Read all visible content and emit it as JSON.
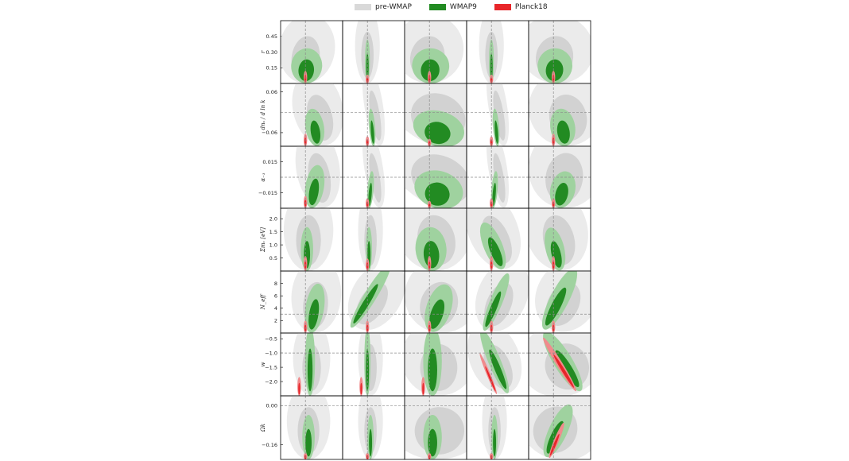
{
  "chart_data": {
    "type": "contour",
    "legend": {
      "position": "top-center",
      "entries": [
        {
          "label": "pre-WMAP",
          "color": "#d9d9d9"
        },
        {
          "label": "WMAP9",
          "color": "#228b22"
        },
        {
          "label": "Planck18",
          "color": "#e8262a"
        }
      ]
    },
    "colors": {
      "pre_wmap_outer": "#ebebeb",
      "pre_wmap_inner": "#d2d2d2",
      "wmap9_outer": "#9fd29f",
      "wmap9_inner": "#228b22",
      "planck18_outer": "#f08b8d",
      "planck18_inner": "#e8262a",
      "fiducial_line": "#8a8a8a",
      "frame": "#000000"
    },
    "grid": false,
    "columns": 5,
    "rows": [
      {
        "label": "r",
        "ylim": [
          0,
          0.6
        ],
        "ticks": [
          0.15,
          0.3,
          0.45
        ],
        "tick_labels": [
          "0.15",
          "0.30",
          "0.45"
        ],
        "fiducial": null
      },
      {
        "label": "dnₛ / d ln k",
        "ylim": [
          -0.1,
          0.085
        ],
        "ticks": [
          -0.06,
          0.06
        ],
        "tick_labels": [
          "−0.06",
          "0.06"
        ],
        "fiducial": 0
      },
      {
        "label": "α₋₁",
        "ylim": [
          -0.03,
          0.03
        ],
        "ticks": [
          -0.015,
          0.015
        ],
        "tick_labels": [
          "−0.015",
          "0.015"
        ],
        "fiducial": 0
      },
      {
        "label": "Σmᵥ [eV]",
        "ylim": [
          0,
          2.4
        ],
        "ticks": [
          0.5,
          1.0,
          1.5,
          2.0
        ],
        "tick_labels": [
          "0.5",
          "1.0",
          "1.5",
          "2.0"
        ],
        "fiducial": null
      },
      {
        "label": "N_eff",
        "ylim": [
          0,
          10
        ],
        "ticks": [
          2,
          4,
          6,
          8
        ],
        "tick_labels": [
          "2",
          "4",
          "6",
          "8"
        ],
        "fiducial": 3.046
      },
      {
        "label": "w",
        "ylim": [
          -2.5,
          -0.3
        ],
        "ticks": [
          -2.0,
          -1.5,
          -1.0,
          -0.5
        ],
        "tick_labels": [
          "−2.0",
          "−1.5",
          "−1.0",
          "−0.5"
        ],
        "fiducial": -1
      },
      {
        "label": "Ωk",
        "ylim": [
          -0.22,
          0.04
        ],
        "ticks": [
          -0.16,
          0.0
        ],
        "tick_labels": [
          "−0.16",
          "0.00"
        ],
        "fiducial": 0
      }
    ],
    "contours": [
      [
        {
          "pre": [
            0.05,
            0.55,
            0.45,
            0.2
          ],
          "w9": [
            0.04,
            0.28,
            0.25,
            0.12
          ],
          "pl": [
            0.0,
            0.1,
            0.02,
            0.0
          ]
        },
        {
          "pre": [
            0.0,
            0.6,
            0.2,
            0.0
          ],
          "w9": [
            0.0,
            0.35,
            0.04,
            0.0
          ],
          "pl": [
            0.0,
            0.07,
            0.0,
            0.0
          ]
        },
        {
          "pre": [
            0.0,
            0.55,
            0.55,
            0.3
          ],
          "w9": [
            0.04,
            0.28,
            0.3,
            0.15
          ],
          "pl": [
            0.0,
            0.1,
            0.02,
            0.0
          ]
        },
        {
          "pre": [
            0.0,
            0.6,
            0.2,
            0.0
          ],
          "w9": [
            0.0,
            0.35,
            0.04,
            0.0
          ],
          "pl": [
            0.0,
            0.07,
            0.0,
            0.0
          ]
        },
        {
          "pre": [
            0.1,
            0.55,
            0.6,
            0.3
          ],
          "w9": [
            0.05,
            0.28,
            0.28,
            0.14
          ],
          "pl": [
            0.0,
            0.1,
            0.02,
            0.0
          ]
        }
      ],
      [
        {
          "pre": [
            0.4,
            0.6,
            0.4,
            -0.3
          ],
          "w9": [
            0.3,
            0.3,
            0.15,
            -0.2
          ],
          "pl": [
            0.0,
            0.1,
            0.0,
            0.0
          ]
        },
        {
          "pre": [
            0.2,
            0.65,
            0.15,
            -0.2
          ],
          "w9": [
            0.15,
            0.3,
            0.05,
            -0.1
          ],
          "pl": [
            0.0,
            0.08,
            0.0,
            0.0
          ]
        },
        {
          "pre": [
            0.4,
            0.6,
            0.9,
            0.5
          ],
          "w9": [
            0.3,
            0.28,
            0.42,
            0.35
          ],
          "pl": [
            0.0,
            0.06,
            0.02,
            0.0
          ]
        },
        {
          "pre": [
            0.2,
            0.65,
            0.15,
            -0.2
          ],
          "w9": [
            0.15,
            0.3,
            0.05,
            -0.1
          ],
          "pl": [
            0.0,
            0.08,
            0.0,
            0.0
          ]
        },
        {
          "pre": [
            0.4,
            0.6,
            0.6,
            -0.3
          ],
          "w9": [
            0.3,
            0.3,
            0.2,
            -0.2
          ],
          "pl": [
            0.0,
            0.1,
            0.0,
            0.0
          ]
        }
      ],
      [
        {
          "pre": [
            0.4,
            0.65,
            0.35,
            -0.2
          ],
          "w9": [
            0.3,
            0.35,
            0.15,
            0.2
          ],
          "pl": [
            0.0,
            0.1,
            0.0,
            0.0
          ]
        },
        {
          "pre": [
            0.2,
            0.65,
            0.15,
            -0.2
          ],
          "w9": [
            0.1,
            0.3,
            0.05,
            0.1
          ],
          "pl": [
            0.0,
            0.08,
            0.0,
            0.0
          ]
        },
        {
          "pre": [
            0.5,
            0.6,
            1.0,
            0.6
          ],
          "w9": [
            0.3,
            0.3,
            0.4,
            0.4
          ],
          "pl": [
            0.0,
            0.06,
            0.02,
            0.0
          ]
        },
        {
          "pre": [
            0.2,
            0.65,
            0.15,
            -0.2
          ],
          "w9": [
            0.1,
            0.3,
            0.05,
            0.1
          ],
          "pl": [
            0.0,
            0.08,
            0.0,
            0.0
          ]
        },
        {
          "pre": [
            0.4,
            0.65,
            0.6,
            0.2
          ],
          "w9": [
            0.3,
            0.3,
            0.2,
            0.3
          ],
          "pl": [
            0.0,
            0.08,
            0.0,
            0.0
          ]
        }
      ],
      [
        {
          "pre": [
            0.1,
            0.65,
            0.4,
            0.0
          ],
          "w9": [
            0.05,
            0.35,
            0.1,
            0.0
          ],
          "pl": [
            0.0,
            0.12,
            0.0,
            0.0
          ]
        },
        {
          "pre": [
            0.1,
            0.65,
            0.2,
            0.0
          ],
          "w9": [
            0.05,
            0.35,
            0.05,
            0.0
          ],
          "pl": [
            0.0,
            0.1,
            0.0,
            0.0
          ]
        },
        {
          "pre": [
            0.15,
            0.65,
            0.6,
            -0.3
          ],
          "w9": [
            0.05,
            0.35,
            0.25,
            -0.1
          ],
          "pl": [
            0.0,
            0.12,
            0.0,
            0.0
          ]
        },
        {
          "pre": [
            0.05,
            0.65,
            0.4,
            -0.5
          ],
          "w9": [
            0.05,
            0.4,
            0.15,
            -0.5
          ],
          "pl": [
            0.0,
            0.12,
            0.0,
            0.0
          ]
        },
        {
          "pre": [
            0.1,
            0.65,
            0.5,
            -0.3
          ],
          "w9": [
            0.05,
            0.35,
            0.15,
            -0.3
          ],
          "pl": [
            0.0,
            0.12,
            0.0,
            0.0
          ]
        }
      ],
      [
        {
          "pre": [
            0.35,
            0.6,
            0.4,
            0.1
          ],
          "w9": [
            0.3,
            0.4,
            0.15,
            0.2
          ],
          "pl": [
            0.0,
            0.1,
            0.02,
            0.0
          ]
        },
        {
          "pre": [
            0.3,
            0.6,
            0.4,
            0.7
          ],
          "w9": [
            0.1,
            0.6,
            0.1,
            0.7
          ],
          "pl": [
            0.0,
            0.1,
            0.0,
            0.0
          ]
        },
        {
          "pre": [
            0.4,
            0.6,
            0.6,
            0.4
          ],
          "w9": [
            0.3,
            0.4,
            0.2,
            0.4
          ],
          "pl": [
            0.0,
            0.1,
            0.02,
            0.0
          ]
        },
        {
          "pre": [
            0.35,
            0.6,
            0.4,
            0.5
          ],
          "w9": [
            0.15,
            0.5,
            0.1,
            0.5
          ],
          "pl": [
            0.0,
            0.1,
            0.0,
            0.0
          ]
        },
        {
          "pre": [
            0.45,
            0.6,
            0.5,
            0.6
          ],
          "w9": [
            0.2,
            0.55,
            0.15,
            0.6
          ],
          "pl": [
            0.0,
            0.1,
            0.02,
            0.0
          ]
        }
      ],
      [
        {
          "pre": [
            0.2,
            0.6,
            0.3,
            0.0
          ],
          "w9": [
            0.15,
            0.55,
            0.08,
            0.0
          ],
          "pl": [
            -0.2,
            0.15,
            0.03,
            0.0
          ]
        },
        {
          "pre": [
            0.1,
            0.6,
            0.2,
            0.0
          ],
          "w9": [
            0.0,
            0.55,
            0.05,
            0.0
          ],
          "pl": [
            -0.2,
            0.15,
            0.02,
            0.0
          ]
        },
        {
          "pre": [
            0.3,
            0.6,
            0.6,
            0.0
          ],
          "w9": [
            0.1,
            0.55,
            0.15,
            0.0
          ],
          "pl": [
            -0.2,
            0.15,
            0.03,
            0.0
          ]
        },
        {
          "pre": [
            0.1,
            0.6,
            0.4,
            -0.5
          ],
          "w9": [
            0.1,
            0.55,
            0.1,
            -0.5
          ],
          "pl": [
            -0.1,
            0.35,
            0.03,
            -0.5
          ]
        },
        {
          "pre": [
            0.3,
            0.6,
            0.7,
            -0.6
          ],
          "w9": [
            0.3,
            0.55,
            0.15,
            -0.7
          ],
          "pl": [
            0.2,
            0.5,
            0.05,
            -0.7
          ]
        }
      ],
      [
        {
          "pre": [
            0.1,
            0.6,
            0.35,
            0.0
          ],
          "w9": [
            0.1,
            0.35,
            0.1,
            0.0
          ],
          "pl": [
            0.0,
            0.05,
            0.02,
            0.0
          ]
        },
        {
          "pre": [
            0.1,
            0.6,
            0.2,
            0.0
          ],
          "w9": [
            0.1,
            0.35,
            0.05,
            0.0
          ],
          "pl": [
            0.0,
            0.05,
            0.0,
            0.0
          ]
        },
        {
          "pre": [
            0.3,
            0.6,
            0.8,
            -0.1
          ],
          "w9": [
            0.1,
            0.35,
            0.15,
            0.0
          ],
          "pl": [
            0.0,
            0.05,
            0.02,
            0.0
          ]
        },
        {
          "pre": [
            0.1,
            0.6,
            0.2,
            0.0
          ],
          "w9": [
            0.1,
            0.35,
            0.05,
            0.0
          ],
          "pl": [
            0.0,
            0.05,
            0.0,
            0.0
          ]
        },
        {
          "pre": [
            0.2,
            0.6,
            0.7,
            0.6
          ],
          "w9": [
            0.15,
            0.45,
            0.15,
            0.55
          ],
          "pl": [
            0.1,
            0.3,
            0.04,
            0.5
          ]
        }
      ]
    ]
  }
}
